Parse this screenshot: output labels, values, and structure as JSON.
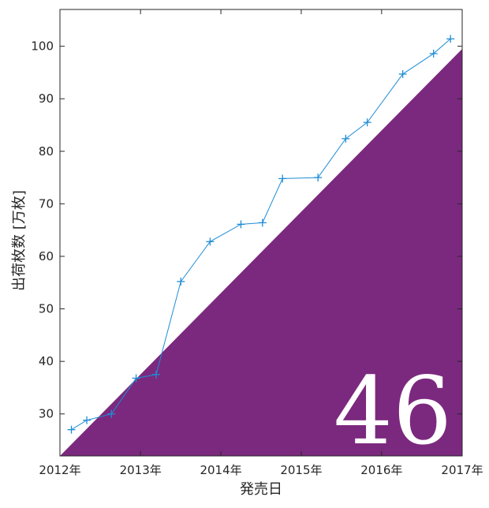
{
  "chart_data": {
    "type": "line",
    "title": "",
    "xlabel": "発売日",
    "ylabel": "出荷枚数 [万枚]",
    "xlim": [
      "2012-01-01",
      "2017-01-01"
    ],
    "ylim": [
      22,
      107
    ],
    "grid": false,
    "legend": "none",
    "xticks": [
      "2012-01-01",
      "2013-01-01",
      "2014-01-01",
      "2015-01-01",
      "2016-01-01",
      "2017-01-01"
    ],
    "xtick_labels": [
      "2012年",
      "2013年",
      "2014年",
      "2015年",
      "2016年",
      "2017年"
    ],
    "yticks": [
      30,
      40,
      50,
      60,
      70,
      80,
      90,
      100
    ],
    "ytick_labels": [
      "30",
      "40",
      "50",
      "60",
      "70",
      "80",
      "90",
      "100"
    ],
    "series": [
      {
        "marker": "+",
        "color": "#1f8dd6",
        "x": [
          "2012-02-22",
          "2012-05-02",
          "2012-08-22",
          "2012-12-12",
          "2013-03-13",
          "2013-07-03",
          "2013-11-13",
          "2014-04-02",
          "2014-07-09",
          "2014-10-08",
          "2015-03-18",
          "2015-07-22",
          "2015-10-28",
          "2016-04-06",
          "2016-08-24",
          "2016-11-09"
        ],
        "values": [
          27.0,
          28.8,
          30.0,
          36.8,
          37.5,
          55.2,
          62.8,
          66.1,
          66.4,
          74.8,
          75.0,
          82.4,
          85.5,
          94.7,
          98.6,
          101.4
        ]
      }
    ]
  },
  "background_triangle": {
    "color": "#7b297e",
    "from": {
      "x": "2012-01-01",
      "y": 22
    },
    "to": {
      "x": "2017-01-01",
      "y": 99.5
    }
  },
  "watermark": {
    "text": "46"
  },
  "colors": {
    "axis": "#262626",
    "line": "#1f8dd6",
    "triangle": "#7b297e"
  }
}
